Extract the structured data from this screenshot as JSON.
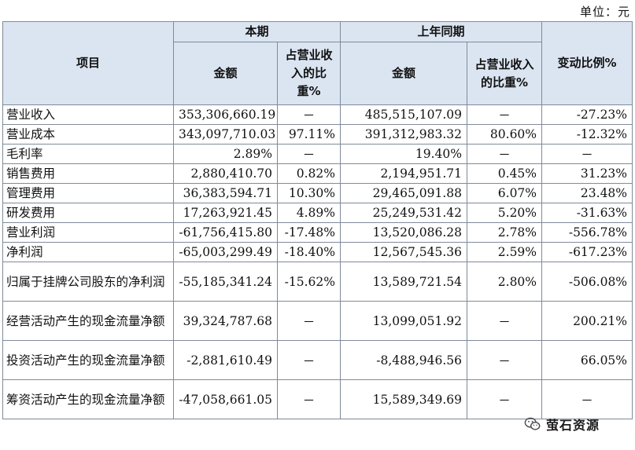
{
  "unit_label": "单位：元",
  "header": {
    "item": "项目",
    "current_period": "本期",
    "prior_period": "上年同期",
    "change_ratio": "变动比例%",
    "amount": "金额",
    "share_of_revenue": "占营业收入的比重%"
  },
  "rows": [
    {
      "item": "营业收入",
      "cur_amount": "353,306,660.19",
      "cur_share": "－",
      "prev_amount": "485,515,107.09",
      "prev_share": "－",
      "change": "-27.23%"
    },
    {
      "item": "营业成本",
      "cur_amount": "343,097,710.03",
      "cur_share": "97.11%",
      "prev_amount": "391,312,983.32",
      "prev_share": "80.60%",
      "change": "-12.32%"
    },
    {
      "item": "毛利率",
      "cur_amount": "2.89%",
      "cur_share": "－",
      "prev_amount": "19.40%",
      "prev_share": "－",
      "change": "－"
    },
    {
      "item": "销售费用",
      "cur_amount": "2,880,410.70",
      "cur_share": "0.82%",
      "prev_amount": "2,194,951.71",
      "prev_share": "0.45%",
      "change": "31.23%"
    },
    {
      "item": "管理费用",
      "cur_amount": "36,383,594.71",
      "cur_share": "10.30%",
      "prev_amount": "29,465,091.88",
      "prev_share": "6.07%",
      "change": "23.48%"
    },
    {
      "item": "研发费用",
      "cur_amount": "17,263,921.45",
      "cur_share": "4.89%",
      "prev_amount": "25,249,531.42",
      "prev_share": "5.20%",
      "change": "-31.63%"
    },
    {
      "item": "营业利润",
      "cur_amount": "-61,756,415.80",
      "cur_share": "-17.48%",
      "prev_amount": "13,520,086.28",
      "prev_share": "2.78%",
      "change": "-556.78%"
    },
    {
      "item": "净利润",
      "cur_amount": "-65,003,299.49",
      "cur_share": "-18.40%",
      "prev_amount": "12,567,545.36",
      "prev_share": "2.59%",
      "change": "-617.23%"
    },
    {
      "item": "归属于挂牌公司股东的净利润",
      "cur_amount": "-55,185,341.24",
      "cur_share": "-15.62%",
      "prev_amount": "13,589,721.54",
      "prev_share": "2.80%",
      "change": "-506.08%"
    },
    {
      "item": "经营活动产生的现金流量净额",
      "cur_amount": "39,324,787.68",
      "cur_share": "－",
      "prev_amount": "13,099,051.92",
      "prev_share": "－",
      "change": "200.21%"
    },
    {
      "item": "投资活动产生的现金流量净额",
      "cur_amount": "-2,881,610.49",
      "cur_share": "－",
      "prev_amount": "-8,488,946.56",
      "prev_share": "－",
      "change": "66.05%"
    },
    {
      "item": "筹资活动产生的现金流量净额",
      "cur_amount": "-47,058,661.05",
      "cur_share": "－",
      "prev_amount": "15,589,349.69",
      "prev_share": "－",
      "change": "－"
    }
  ],
  "watermark": {
    "text": "萤石资源",
    "icon": "wechat-icon"
  },
  "colors": {
    "header_bg": "#dbe5f1",
    "border": "#7f8a99"
  }
}
